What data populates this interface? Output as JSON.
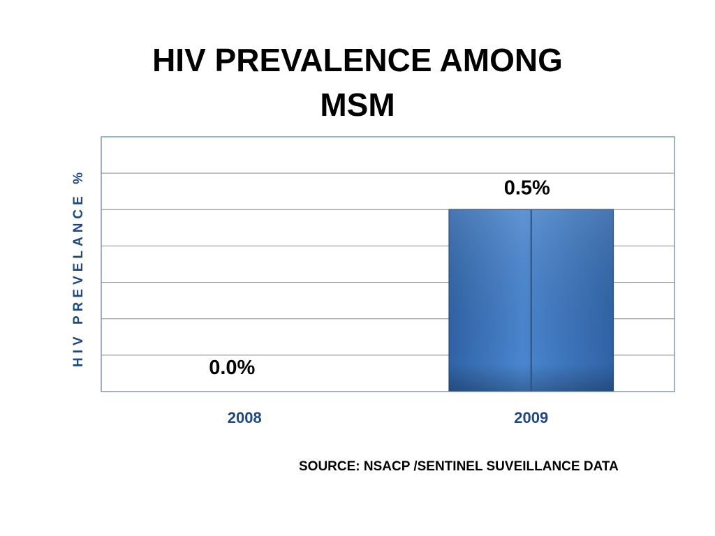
{
  "title_lines": [
    "HIV PREVALENCE AMONG",
    "MSM"
  ],
  "source": "SOURCE: NSACP /SENTINEL SUVEILLANCE DATA",
  "chart_data": {
    "type": "bar",
    "categories": [
      "2008",
      "2009"
    ],
    "values": [
      0.0,
      0.5
    ],
    "data_labels": [
      "0.0%",
      "0.5%"
    ],
    "ylabel": "HIV PREVELANCE %",
    "ylim": [
      0,
      0.7
    ],
    "grid": true,
    "legend": "none",
    "colors": {
      "bar": "#3a73b8",
      "bar_edge": "#2c4f80",
      "axis_label": "#1f497d",
      "category_label": "#1f497d",
      "grid": "#8a8a8a",
      "plot_border": "#7f95b0"
    }
  }
}
